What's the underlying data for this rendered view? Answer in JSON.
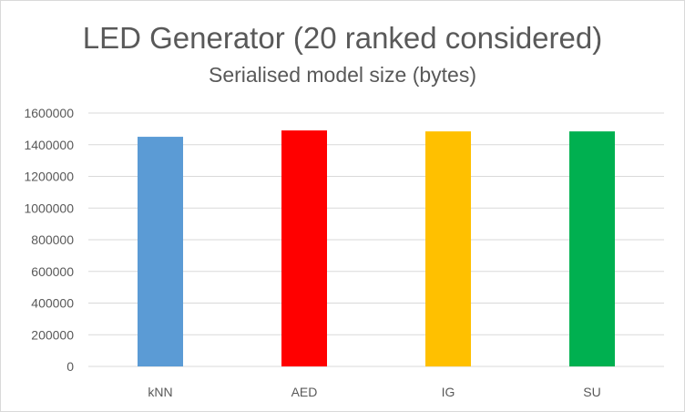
{
  "chart_data": {
    "type": "bar",
    "title": "LED Generator (20 ranked considered)",
    "subtitle": "Serialised model size (bytes)",
    "xlabel": "",
    "ylabel": "",
    "categories": [
      "kNN",
      "AED",
      "IG",
      "SU"
    ],
    "values": [
      1450000,
      1490000,
      1484000,
      1484000
    ],
    "colors": [
      "#5b9bd5",
      "#ff0000",
      "#ffc000",
      "#00b050"
    ],
    "ylim": [
      0,
      1600000
    ],
    "yticks": [
      "0",
      "200000",
      "400000",
      "600000",
      "800000",
      "1000000",
      "1200000",
      "1400000",
      "1600000"
    ],
    "grid": true,
    "legend": "none"
  }
}
